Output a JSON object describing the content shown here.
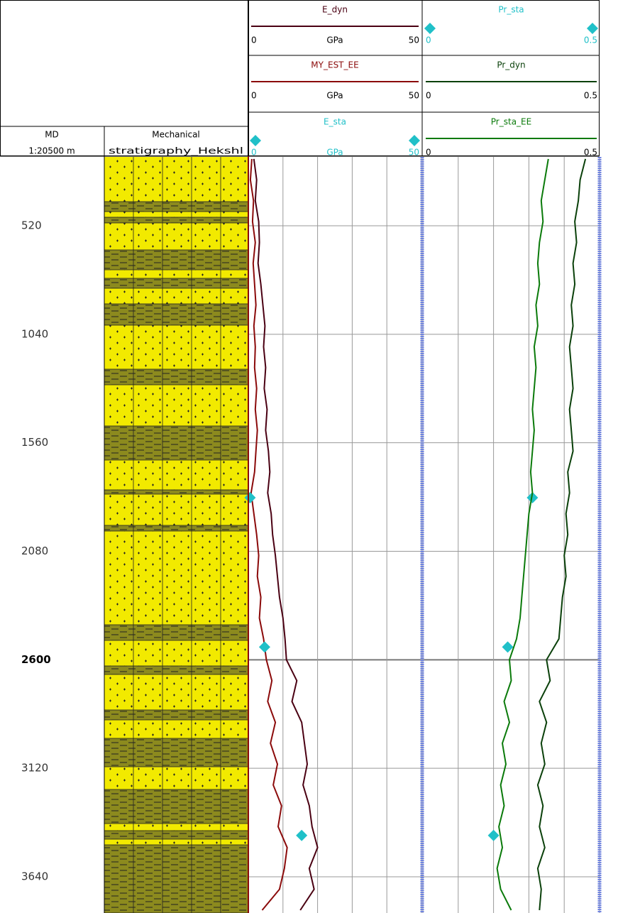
{
  "chart_data": {
    "type": "well-log",
    "depth_label": "MD",
    "scale_label": "1:20500 m",
    "lithology_label": "Mechanical",
    "lithology_sublabel": "stratigraphy_Hekshl",
    "ylim": [
      190,
      3800
    ],
    "yticks": [
      520,
      1040,
      1560,
      2080,
      2600,
      3120,
      3640
    ],
    "bold_ytick": 2600,
    "grid": true,
    "depth": [
      200,
      300,
      400,
      500,
      600,
      700,
      800,
      900,
      1000,
      1100,
      1200,
      1300,
      1400,
      1500,
      1600,
      1700,
      1800,
      1900,
      2000,
      2100,
      2200,
      2300,
      2400,
      2500,
      2600,
      2700,
      2800,
      2900,
      3000,
      3100,
      3200,
      3300,
      3400,
      3500,
      3600,
      3700,
      3800
    ],
    "tracks": [
      {
        "xticks": [
          0,
          10,
          20,
          30,
          40,
          50
        ],
        "series": [
          {
            "name": "E_dyn",
            "color": "#4a0012",
            "style": "line",
            "unit": "GPa",
            "xlim": [
              0,
              50
            ],
            "values": [
              1.6,
              2.4,
              2.0,
              3.0,
              3.2,
              2.8,
              3.6,
              4.2,
              4.8,
              4.4,
              5.0,
              4.6,
              5.4,
              5.0,
              5.8,
              6.2,
              5.6,
              6.6,
              7.0,
              7.8,
              8.4,
              9.0,
              10.0,
              10.6,
              11.0,
              14.0,
              12.6,
              15.4,
              16.2,
              17.0,
              15.8,
              17.6,
              18.4,
              20.0,
              17.6,
              19.0,
              15.0
            ]
          },
          {
            "name": "MY_EST_EE",
            "color": "#8b0a0a",
            "style": "line",
            "unit": "GPa",
            "xlim": [
              0,
              50
            ],
            "values": [
              1.0,
              0.6,
              1.5,
              1.2,
              2.0,
              1.4,
              1.8,
              2.2,
              1.6,
              2.0,
              1.8,
              2.4,
              2.0,
              2.6,
              2.2,
              1.8,
              0.8,
              1.6,
              2.4,
              3.0,
              2.6,
              3.6,
              3.2,
              4.4,
              5.2,
              6.8,
              5.6,
              7.8,
              6.4,
              8.4,
              7.2,
              9.6,
              8.6,
              11.2,
              10.4,
              9.0,
              4.0
            ]
          },
          {
            "name": "E_sta",
            "color": "#20c0c8",
            "style": "marker",
            "unit": "GPa",
            "xlim": [
              0,
              50
            ],
            "depth": [
              1823,
              2539,
              3442
            ],
            "values": [
              0.5,
              4.7,
              15.4
            ]
          }
        ]
      },
      {
        "xticks": [
          0,
          0.1,
          0.2,
          0.3,
          0.4,
          0.5
        ],
        "series": [
          {
            "name": "Pr_sta",
            "color": "#20c0c8",
            "style": "marker",
            "xlim": [
              0,
              0.5
            ],
            "depth": [
              1823,
              2539,
              3442
            ],
            "values": [
              0.31,
              0.24,
              0.2
            ]
          },
          {
            "name": "Pr_dyn",
            "color": "#0a400a",
            "style": "line",
            "xlim": [
              0,
              0.5
            ],
            "values": [
              0.46,
              0.445,
              0.44,
              0.43,
              0.435,
              0.425,
              0.43,
              0.42,
              0.425,
              0.415,
              0.42,
              0.425,
              0.415,
              0.42,
              0.425,
              0.41,
              0.415,
              0.405,
              0.41,
              0.4,
              0.405,
              0.395,
              0.39,
              0.385,
              0.35,
              0.36,
              0.33,
              0.35,
              0.335,
              0.345,
              0.325,
              0.34,
              0.33,
              0.345,
              0.325,
              0.335,
              0.33
            ]
          },
          {
            "name": "Pr_sta_EE",
            "color": "#0a7a0a",
            "style": "line",
            "xlim": [
              0,
              0.5
            ],
            "values": [
              0.355,
              0.345,
              0.335,
              0.34,
              0.33,
              0.325,
              0.33,
              0.32,
              0.325,
              0.315,
              0.32,
              0.315,
              0.31,
              0.315,
              0.31,
              0.305,
              0.31,
              0.3,
              0.295,
              0.29,
              0.285,
              0.28,
              0.275,
              0.265,
              0.245,
              0.25,
              0.23,
              0.245,
              0.225,
              0.235,
              0.22,
              0.23,
              0.215,
              0.225,
              0.21,
              0.22,
              0.25
            ]
          }
        ]
      }
    ]
  }
}
